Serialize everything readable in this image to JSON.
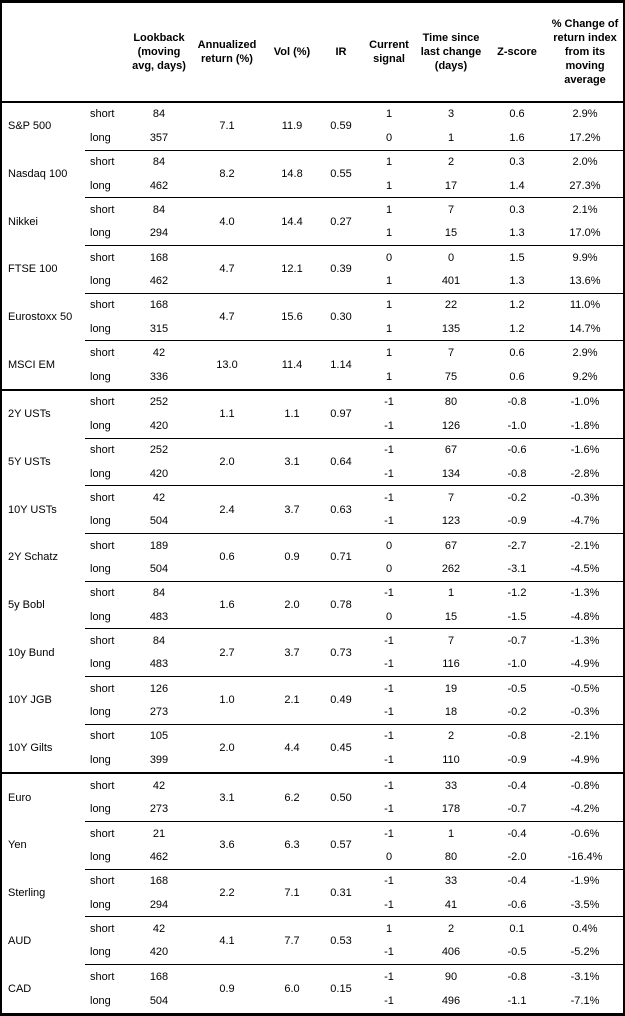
{
  "header": {
    "lookback": "Lookback (moving avg, days)",
    "annualized_return": "Annualized return (%)",
    "vol": "Vol (%)",
    "ir": "IR",
    "current_signal": "Current signal",
    "time_since": "Time since last change (days)",
    "z_score": "Z-score",
    "pct_change": "% Change of return index from its moving average"
  },
  "groups": [
    {
      "name": "S&P 500",
      "section_start": false,
      "annualized_return": "7.1",
      "vol": "11.9",
      "ir": "0.59",
      "rows": [
        {
          "leg": "short",
          "lookback": "84",
          "signal": "1",
          "time_since": "3",
          "z_score": "0.6",
          "pct_change": "2.9%"
        },
        {
          "leg": "long",
          "lookback": "357",
          "signal": "0",
          "time_since": "1",
          "z_score": "1.6",
          "pct_change": "17.2%"
        }
      ]
    },
    {
      "name": "Nasdaq 100",
      "section_start": false,
      "annualized_return": "8.2",
      "vol": "14.8",
      "ir": "0.55",
      "rows": [
        {
          "leg": "short",
          "lookback": "84",
          "signal": "1",
          "time_since": "2",
          "z_score": "0.3",
          "pct_change": "2.0%"
        },
        {
          "leg": "long",
          "lookback": "462",
          "signal": "1",
          "time_since": "17",
          "z_score": "1.4",
          "pct_change": "27.3%"
        }
      ]
    },
    {
      "name": "Nikkei",
      "section_start": false,
      "annualized_return": "4.0",
      "vol": "14.4",
      "ir": "0.27",
      "rows": [
        {
          "leg": "short",
          "lookback": "84",
          "signal": "1",
          "time_since": "7",
          "z_score": "0.3",
          "pct_change": "2.1%"
        },
        {
          "leg": "long",
          "lookback": "294",
          "signal": "1",
          "time_since": "15",
          "z_score": "1.3",
          "pct_change": "17.0%"
        }
      ]
    },
    {
      "name": "FTSE 100",
      "section_start": false,
      "annualized_return": "4.7",
      "vol": "12.1",
      "ir": "0.39",
      "rows": [
        {
          "leg": "short",
          "lookback": "168",
          "signal": "0",
          "time_since": "0",
          "z_score": "1.5",
          "pct_change": "9.9%"
        },
        {
          "leg": "long",
          "lookback": "462",
          "signal": "1",
          "time_since": "401",
          "z_score": "1.3",
          "pct_change": "13.6%"
        }
      ]
    },
    {
      "name": "Eurostoxx 50",
      "section_start": false,
      "annualized_return": "4.7",
      "vol": "15.6",
      "ir": "0.30",
      "rows": [
        {
          "leg": "short",
          "lookback": "168",
          "signal": "1",
          "time_since": "22",
          "z_score": "1.2",
          "pct_change": "11.0%"
        },
        {
          "leg": "long",
          "lookback": "315",
          "signal": "1",
          "time_since": "135",
          "z_score": "1.2",
          "pct_change": "14.7%"
        }
      ]
    },
    {
      "name": "MSCI EM",
      "section_start": false,
      "annualized_return": "13.0",
      "vol": "11.4",
      "ir": "1.14",
      "rows": [
        {
          "leg": "short",
          "lookback": "42",
          "signal": "1",
          "time_since": "7",
          "z_score": "0.6",
          "pct_change": "2.9%"
        },
        {
          "leg": "long",
          "lookback": "336",
          "signal": "1",
          "time_since": "75",
          "z_score": "0.6",
          "pct_change": "9.2%"
        }
      ]
    },
    {
      "name": "2Y USTs",
      "section_start": true,
      "annualized_return": "1.1",
      "vol": "1.1",
      "ir": "0.97",
      "rows": [
        {
          "leg": "short",
          "lookback": "252",
          "signal": "-1",
          "time_since": "80",
          "z_score": "-0.8",
          "pct_change": "-1.0%"
        },
        {
          "leg": "long",
          "lookback": "420",
          "signal": "-1",
          "time_since": "126",
          "z_score": "-1.0",
          "pct_change": "-1.8%"
        }
      ]
    },
    {
      "name": "5Y USTs",
      "section_start": false,
      "annualized_return": "2.0",
      "vol": "3.1",
      "ir": "0.64",
      "rows": [
        {
          "leg": "short",
          "lookback": "252",
          "signal": "-1",
          "time_since": "67",
          "z_score": "-0.6",
          "pct_change": "-1.6%"
        },
        {
          "leg": "long",
          "lookback": "420",
          "signal": "-1",
          "time_since": "134",
          "z_score": "-0.8",
          "pct_change": "-2.8%"
        }
      ]
    },
    {
      "name": "10Y USTs",
      "section_start": false,
      "annualized_return": "2.4",
      "vol": "3.7",
      "ir": "0.63",
      "rows": [
        {
          "leg": "short",
          "lookback": "42",
          "signal": "-1",
          "time_since": "7",
          "z_score": "-0.2",
          "pct_change": "-0.3%"
        },
        {
          "leg": "long",
          "lookback": "504",
          "signal": "-1",
          "time_since": "123",
          "z_score": "-0.9",
          "pct_change": "-4.7%"
        }
      ]
    },
    {
      "name": "2Y Schatz",
      "section_start": false,
      "annualized_return": "0.6",
      "vol": "0.9",
      "ir": "0.71",
      "rows": [
        {
          "leg": "short",
          "lookback": "189",
          "signal": "0",
          "time_since": "67",
          "z_score": "-2.7",
          "pct_change": "-2.1%"
        },
        {
          "leg": "long",
          "lookback": "504",
          "signal": "0",
          "time_since": "262",
          "z_score": "-3.1",
          "pct_change": "-4.5%"
        }
      ]
    },
    {
      "name": "5y Bobl",
      "section_start": false,
      "annualized_return": "1.6",
      "vol": "2.0",
      "ir": "0.78",
      "rows": [
        {
          "leg": "short",
          "lookback": "84",
          "signal": "-1",
          "time_since": "1",
          "z_score": "-1.2",
          "pct_change": "-1.3%"
        },
        {
          "leg": "long",
          "lookback": "483",
          "signal": "0",
          "time_since": "15",
          "z_score": "-1.5",
          "pct_change": "-4.8%"
        }
      ]
    },
    {
      "name": "10y Bund",
      "section_start": false,
      "annualized_return": "2.7",
      "vol": "3.7",
      "ir": "0.73",
      "rows": [
        {
          "leg": "short",
          "lookback": "84",
          "signal": "-1",
          "time_since": "7",
          "z_score": "-0.7",
          "pct_change": "-1.3%"
        },
        {
          "leg": "long",
          "lookback": "483",
          "signal": "-1",
          "time_since": "116",
          "z_score": "-1.0",
          "pct_change": "-4.9%"
        }
      ]
    },
    {
      "name": "10Y JGB",
      "section_start": false,
      "annualized_return": "1.0",
      "vol": "2.1",
      "ir": "0.49",
      "rows": [
        {
          "leg": "short",
          "lookback": "126",
          "signal": "-1",
          "time_since": "19",
          "z_score": "-0.5",
          "pct_change": "-0.5%"
        },
        {
          "leg": "long",
          "lookback": "273",
          "signal": "-1",
          "time_since": "18",
          "z_score": "-0.2",
          "pct_change": "-0.3%"
        }
      ]
    },
    {
      "name": "10Y Gilts",
      "section_start": false,
      "annualized_return": "2.0",
      "vol": "4.4",
      "ir": "0.45",
      "rows": [
        {
          "leg": "short",
          "lookback": "105",
          "signal": "-1",
          "time_since": "2",
          "z_score": "-0.8",
          "pct_change": "-2.1%"
        },
        {
          "leg": "long",
          "lookback": "399",
          "signal": "-1",
          "time_since": "110",
          "z_score": "-0.9",
          "pct_change": "-4.9%"
        }
      ]
    },
    {
      "name": "Euro",
      "section_start": true,
      "annualized_return": "3.1",
      "vol": "6.2",
      "ir": "0.50",
      "rows": [
        {
          "leg": "short",
          "lookback": "42",
          "signal": "-1",
          "time_since": "33",
          "z_score": "-0.4",
          "pct_change": "-0.8%"
        },
        {
          "leg": "long",
          "lookback": "273",
          "signal": "-1",
          "time_since": "178",
          "z_score": "-0.7",
          "pct_change": "-4.2%"
        }
      ]
    },
    {
      "name": "Yen",
      "section_start": false,
      "annualized_return": "3.6",
      "vol": "6.3",
      "ir": "0.57",
      "rows": [
        {
          "leg": "short",
          "lookback": "21",
          "signal": "-1",
          "time_since": "1",
          "z_score": "-0.4",
          "pct_change": "-0.6%"
        },
        {
          "leg": "long",
          "lookback": "462",
          "signal": "0",
          "time_since": "80",
          "z_score": "-2.0",
          "pct_change": "-16.4%"
        }
      ]
    },
    {
      "name": "Sterling",
      "section_start": false,
      "annualized_return": "2.2",
      "vol": "7.1",
      "ir": "0.31",
      "rows": [
        {
          "leg": "short",
          "lookback": "168",
          "signal": "-1",
          "time_since": "33",
          "z_score": "-0.4",
          "pct_change": "-1.9%"
        },
        {
          "leg": "long",
          "lookback": "294",
          "signal": "-1",
          "time_since": "41",
          "z_score": "-0.6",
          "pct_change": "-3.5%"
        }
      ]
    },
    {
      "name": "AUD",
      "section_start": false,
      "annualized_return": "4.1",
      "vol": "7.7",
      "ir": "0.53",
      "rows": [
        {
          "leg": "short",
          "lookback": "42",
          "signal": "1",
          "time_since": "2",
          "z_score": "0.1",
          "pct_change": "0.4%"
        },
        {
          "leg": "long",
          "lookback": "420",
          "signal": "-1",
          "time_since": "406",
          "z_score": "-0.5",
          "pct_change": "-5.2%"
        }
      ]
    },
    {
      "name": "CAD",
      "section_start": false,
      "annualized_return": "0.9",
      "vol": "6.0",
      "ir": "0.15",
      "rows": [
        {
          "leg": "short",
          "lookback": "168",
          "signal": "-1",
          "time_since": "90",
          "z_score": "-0.8",
          "pct_change": "-3.1%"
        },
        {
          "leg": "long",
          "lookback": "504",
          "signal": "-1",
          "time_since": "496",
          "z_score": "-1.1",
          "pct_change": "-7.1%"
        }
      ]
    }
  ]
}
